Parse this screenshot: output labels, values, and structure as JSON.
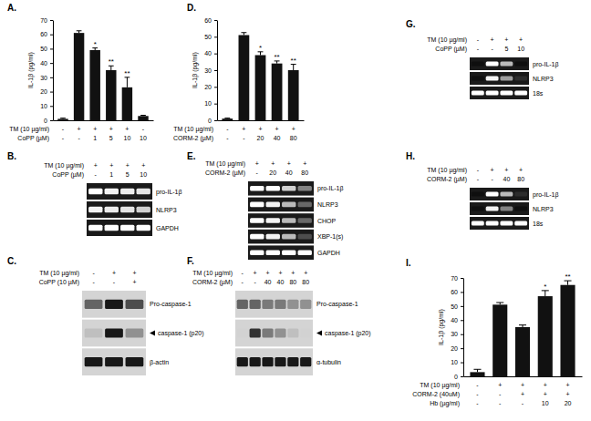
{
  "chart_data": [
    {
      "type": "bar",
      "title": "A.",
      "y_label": "IL-1β (pg/ml)",
      "categories": [
        null,
        null,
        null,
        null,
        null,
        null
      ],
      "values": [
        1,
        61,
        49,
        35,
        23,
        3
      ],
      "errors": [
        0.5,
        1.5,
        1.5,
        3,
        7,
        0.5
      ],
      "significance": [
        null,
        null,
        "*",
        "**",
        "**",
        null
      ],
      "treatments": [
        {
          "label": "TM (10 µg/ml)",
          "levels": [
            "-",
            "+",
            "+",
            "+",
            "+",
            "-"
          ]
        },
        {
          "label": "CoPP (µM)",
          "levels": [
            "-",
            "-",
            "1",
            "5",
            "10",
            "10"
          ]
        }
      ],
      "color": "#111111",
      "ylim": [
        0,
        70
      ],
      "yticks": [
        0,
        10,
        20,
        30,
        40,
        50,
        60,
        70
      ]
    },
    {
      "type": "bar",
      "title": "D.",
      "y_label": "IL-1β (pg/ml)",
      "categories": [
        null,
        null,
        null,
        null,
        null
      ],
      "values": [
        1,
        51,
        39,
        34,
        30
      ],
      "errors": [
        0.3,
        1.5,
        2,
        1.5,
        3.5
      ],
      "significance": [
        null,
        null,
        "*",
        "**",
        "**"
      ],
      "treatments": [
        {
          "label": "TM (10 µg/ml)",
          "levels": [
            "-",
            "+",
            "+",
            "+",
            "+"
          ]
        },
        {
          "label": "CORM-2 (µM)",
          "levels": [
            "-",
            "-",
            "20",
            "40",
            "80"
          ]
        }
      ],
      "color": "#111111",
      "ylim": [
        0,
        60
      ],
      "yticks": [
        0,
        10,
        20,
        30,
        40,
        50,
        60
      ]
    },
    {
      "type": "bar",
      "title": "I.",
      "y_label": "IL-1β (pg/ml)",
      "categories": [
        null,
        null,
        null,
        null,
        null
      ],
      "values": [
        3,
        51,
        35,
        57,
        65
      ],
      "errors": [
        2,
        1.5,
        1.5,
        4,
        3
      ],
      "significance": [
        null,
        null,
        null,
        "*",
        "**"
      ],
      "treatments": [
        {
          "label": "TM (10 µg/ml)",
          "levels": [
            "-",
            "+",
            "+",
            "+",
            "+"
          ]
        },
        {
          "label": "CORM-2 (40uM)",
          "levels": [
            "-",
            "-",
            "+",
            "+",
            "+"
          ]
        },
        {
          "label": "Hb (µg/ml)",
          "levels": [
            "-",
            "-",
            "-",
            "10",
            "20"
          ]
        }
      ],
      "color": "#111111",
      "ylim": [
        0,
        70
      ],
      "yticks": [
        0,
        10,
        20,
        30,
        40,
        50,
        60,
        70
      ]
    }
  ],
  "blots": [
    {
      "title": "B.",
      "type": "rt-pcr",
      "treatments": [
        {
          "label": "TM (10 µg/ml)",
          "levels": [
            "+",
            "+",
            "+",
            "+"
          ]
        },
        {
          "label": "CoPP (µM)",
          "levels": [
            "-",
            "1",
            "5",
            "10"
          ]
        }
      ],
      "rows": [
        {
          "label": "pro-IL-1β",
          "bands": [
            1,
            0.9,
            0.85,
            0.8
          ]
        },
        {
          "label": "NLRP3",
          "bands": [
            0.9,
            0.85,
            0.8,
            0.7
          ]
        },
        {
          "label": "GAPDH",
          "bands": [
            1,
            1,
            1,
            1
          ]
        }
      ]
    },
    {
      "title": "C.",
      "type": "western",
      "treatments": [
        {
          "label": "TM (10 µg/ml)",
          "levels": [
            "-",
            "+",
            "+"
          ]
        },
        {
          "label": "CoPP (10 µM)",
          "levels": [
            "-",
            "-",
            "+"
          ]
        }
      ],
      "rows": [
        {
          "label": "Pro-caspase-1",
          "bands": [
            0.6,
            0.9,
            0.7
          ]
        },
        {
          "label": "caspase-1 (p20)",
          "bands": [
            0.2,
            0.9,
            0.4
          ],
          "marker": "arrow"
        },
        {
          "label": "β-actin",
          "bands": [
            0.9,
            0.9,
            0.9
          ]
        }
      ]
    },
    {
      "title": "E.",
      "type": "rt-pcr",
      "treatments": [
        {
          "label": "TM (10 µg/ml)",
          "levels": [
            "+",
            "+",
            "+",
            "+"
          ]
        },
        {
          "label": "CORM-2 (µM)",
          "levels": [
            "-",
            "20",
            "40",
            "80"
          ]
        }
      ],
      "rows": [
        {
          "label": "pro-IL-1β",
          "bands": [
            1,
            1,
            0.7,
            0.4
          ]
        },
        {
          "label": "NLRP3",
          "bands": [
            1,
            0.9,
            0.6,
            0.3
          ]
        },
        {
          "label": "CHOP",
          "bands": [
            1,
            0.9,
            0.6,
            0.3
          ]
        },
        {
          "label": "XBP-1(s)",
          "bands": [
            1,
            0.9,
            0.6,
            0.2
          ]
        },
        {
          "label": "GAPDH",
          "bands": [
            1,
            1,
            1,
            1
          ]
        }
      ]
    },
    {
      "title": "F.",
      "type": "western",
      "treatments": [
        {
          "label": "TM (10 µg/ml)",
          "levels": [
            "-",
            "+",
            "+",
            "+",
            "+",
            "+"
          ]
        },
        {
          "label": "CORM-2 (µM)",
          "levels": [
            "-",
            "-",
            "40",
            "40",
            "80",
            "80"
          ]
        }
      ],
      "rows": [
        {
          "label": "Pro-caspase-1",
          "bands": [
            0.6,
            0.6,
            0.5,
            0.5,
            0.4,
            0.4
          ]
        },
        {
          "label": "caspase-1 (p20)",
          "bands": [
            0.1,
            0.8,
            0.5,
            0.4,
            0.2,
            0.1
          ],
          "marker": "arrow"
        },
        {
          "label": "α-tubulin",
          "bands": [
            0.9,
            0.9,
            0.9,
            0.9,
            0.9,
            0.9
          ]
        }
      ]
    },
    {
      "title": "G.",
      "type": "rt-pcr",
      "treatments": [
        {
          "label": "TM (10 µg/ml)",
          "levels": [
            "-",
            "+",
            "+",
            "+"
          ]
        },
        {
          "label": "CoPP (µM)",
          "levels": [
            "-",
            "-",
            "5",
            "10"
          ]
        }
      ],
      "rows": [
        {
          "label": "pro-IL-1β",
          "bands": [
            0,
            1,
            0.6,
            0
          ]
        },
        {
          "label": "NLRP3",
          "bands": [
            0,
            0.9,
            0.5,
            0.1
          ]
        },
        {
          "label": "18s",
          "bands": [
            1,
            1,
            1,
            1
          ]
        }
      ]
    },
    {
      "title": "H.",
      "type": "rt-pcr",
      "treatments": [
        {
          "label": "TM (10 µg/ml)",
          "levels": [
            "-",
            "+",
            "+",
            "+"
          ]
        },
        {
          "label": "CORM-2 (µM)",
          "levels": [
            "-",
            "-",
            "40",
            "80"
          ]
        }
      ],
      "rows": [
        {
          "label": "pro-IL-1β",
          "bands": [
            0,
            1,
            0.6,
            0.1
          ]
        },
        {
          "label": "NLRP3",
          "bands": [
            0,
            0.9,
            0.4,
            0
          ]
        },
        {
          "label": "18s",
          "bands": [
            1,
            1,
            1,
            1
          ]
        }
      ]
    }
  ]
}
